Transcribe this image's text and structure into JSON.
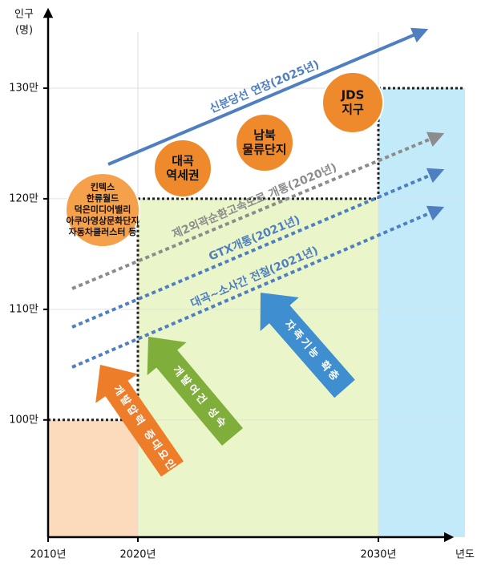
{
  "chart_data": {
    "type": "step",
    "y_label": [
      "인구",
      "(명)"
    ],
    "x_label": "년도",
    "categories": [
      "2010년",
      "2020년",
      "2030년"
    ],
    "values": [
      100,
      120,
      130
    ],
    "colors": [
      "#fcd3b0",
      "#e6f4c0",
      "#b9e6f7"
    ],
    "ylim": [
      89.4,
      135.8
    ],
    "yticks": [
      {
        "value": 100,
        "label": "100만"
      },
      {
        "value": 110,
        "label": "110만"
      },
      {
        "value": 120,
        "label": "120만"
      },
      {
        "value": 130,
        "label": "130만"
      }
    ],
    "grid": true,
    "arrows": [
      {
        "label": "신분당선 연장(2025년)",
        "color": "#4f7fc0"
      },
      {
        "label": "제2외곽순환고속도로 개통(2020년)",
        "color": "#8c8c8c"
      },
      {
        "label": "GTX개통(2021년)",
        "color": "#4f7fc0"
      },
      {
        "label": "대곡~소사간 전철(2021년)",
        "color": "#4f7fc0"
      }
    ],
    "circles": [
      {
        "lines": [
          "킨텍스",
          "한류월드",
          "덕은미디어밸리",
          "아쿠아영상문화단지",
          "자동차클러스터 등"
        ],
        "color": "#f5a04a"
      },
      {
        "lines": [
          "대곡",
          "역세권"
        ],
        "color": "#ef8a2c"
      },
      {
        "lines": [
          "남북",
          "물류단지"
        ],
        "color": "#ef8a2c"
      },
      {
        "lines": [
          "JDS",
          "지구"
        ],
        "color": "#ef8a2c"
      }
    ],
    "forces": [
      {
        "label": "개발압력 증대요인",
        "color": "#ee7d2a"
      },
      {
        "label": "개발여건 성숙",
        "color": "#7fae3a"
      },
      {
        "label": "자족기능 확충",
        "color": "#3f8fd0"
      }
    ]
  }
}
